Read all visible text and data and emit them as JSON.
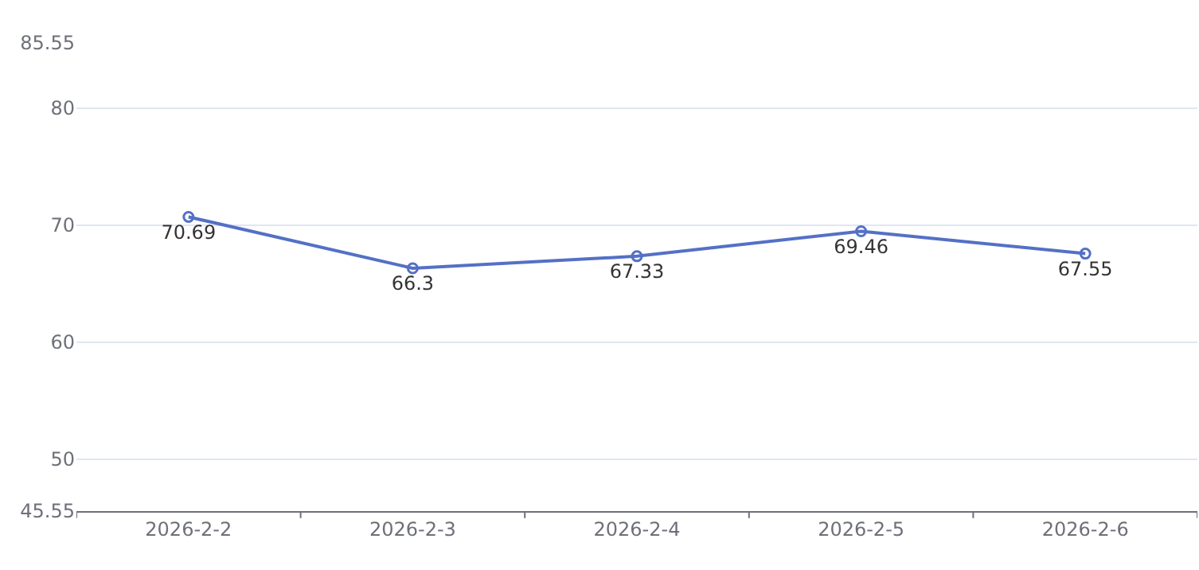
{
  "chart_data": {
    "type": "line",
    "categories": [
      "2026-2-2",
      "2026-2-3",
      "2026-2-4",
      "2026-2-5",
      "2026-2-6"
    ],
    "series": [
      {
        "color": "#5470c6",
        "values": [
          70.69,
          66.3,
          67.33,
          69.46,
          67.55
        ]
      }
    ],
    "ylim": [
      45.55,
      85.55
    ],
    "yticks": [
      45.55,
      50,
      60,
      70,
      80,
      85.55
    ],
    "grid": "y",
    "marker": "circle",
    "line_style": "solid",
    "data_labels": true,
    "legend": false
  }
}
